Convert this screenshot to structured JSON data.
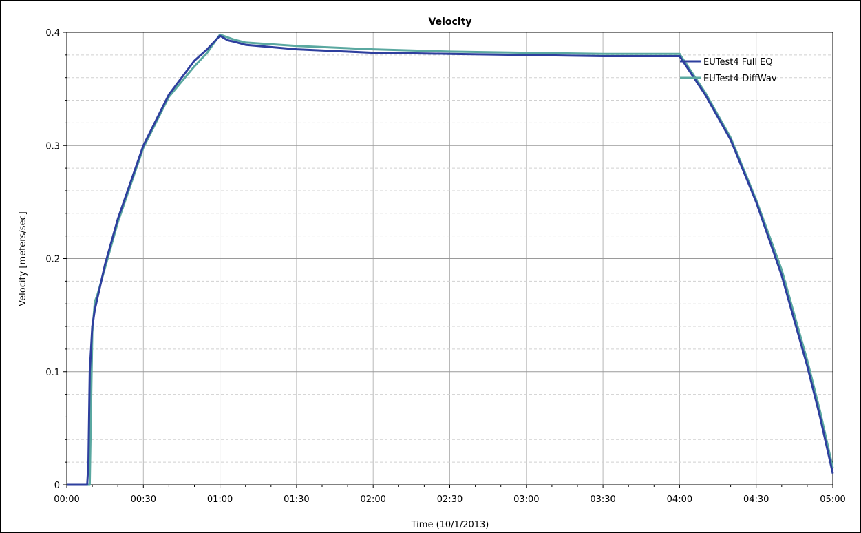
{
  "chart_data": {
    "type": "line",
    "title": "Velocity",
    "xlabel": "Time (10/1/2013)",
    "ylabel": "Velocity [meters/sec]",
    "xlim": [
      "00:00",
      "05:00"
    ],
    "ylim": [
      0,
      0.4
    ],
    "x_ticks": [
      "00:00",
      "00:30",
      "01:00",
      "01:30",
      "02:00",
      "02:30",
      "03:00",
      "03:30",
      "04:00",
      "04:30",
      "05:00"
    ],
    "y_ticks": [
      "0",
      "0.1",
      "0.2",
      "0.3",
      "0.4"
    ],
    "grid": true,
    "legend_position": "top-right",
    "series": [
      {
        "name": "EUTest4 Full EQ",
        "color": "#2e3f9e",
        "x": [
          "00:00",
          "00:08",
          "00:08.5",
          "00:09",
          "00:10",
          "00:11",
          "00:15",
          "00:20",
          "00:30",
          "00:40",
          "00:50",
          "00:55",
          "01:00",
          "01:03",
          "01:05",
          "01:10",
          "01:30",
          "02:00",
          "02:30",
          "03:00",
          "03:30",
          "04:00",
          "04:10",
          "04:20",
          "04:30",
          "04:40",
          "04:45",
          "04:50",
          "04:55",
          "05:00"
        ],
        "values": [
          0,
          0,
          0.02,
          0.1,
          0.14,
          0.155,
          0.195,
          0.235,
          0.3,
          0.345,
          0.375,
          0.385,
          0.397,
          0.393,
          0.392,
          0.389,
          0.385,
          0.382,
          0.381,
          0.38,
          0.379,
          0.379,
          0.345,
          0.305,
          0.25,
          0.185,
          0.145,
          0.105,
          0.06,
          0.01
        ]
      },
      {
        "name": "EUTest4-DiffWav",
        "color": "#5aa8a0",
        "x": [
          "00:00",
          "00:08",
          "00:09",
          "00:10",
          "00:11",
          "00:12",
          "00:15",
          "00:20",
          "00:30",
          "00:40",
          "00:50",
          "00:55",
          "01:00",
          "01:05",
          "01:10",
          "01:30",
          "02:00",
          "02:30",
          "03:00",
          "03:30",
          "04:00",
          "04:10",
          "04:20",
          "04:30",
          "04:40",
          "04:45",
          "04:50",
          "04:55",
          "05:00"
        ],
        "values": [
          0,
          0,
          0,
          0.135,
          0.162,
          0.168,
          0.192,
          0.232,
          0.298,
          0.343,
          0.37,
          0.382,
          0.398,
          0.394,
          0.391,
          0.388,
          0.385,
          0.383,
          0.382,
          0.381,
          0.381,
          0.347,
          0.307,
          0.252,
          0.19,
          0.15,
          0.11,
          0.065,
          0.015
        ]
      }
    ]
  }
}
